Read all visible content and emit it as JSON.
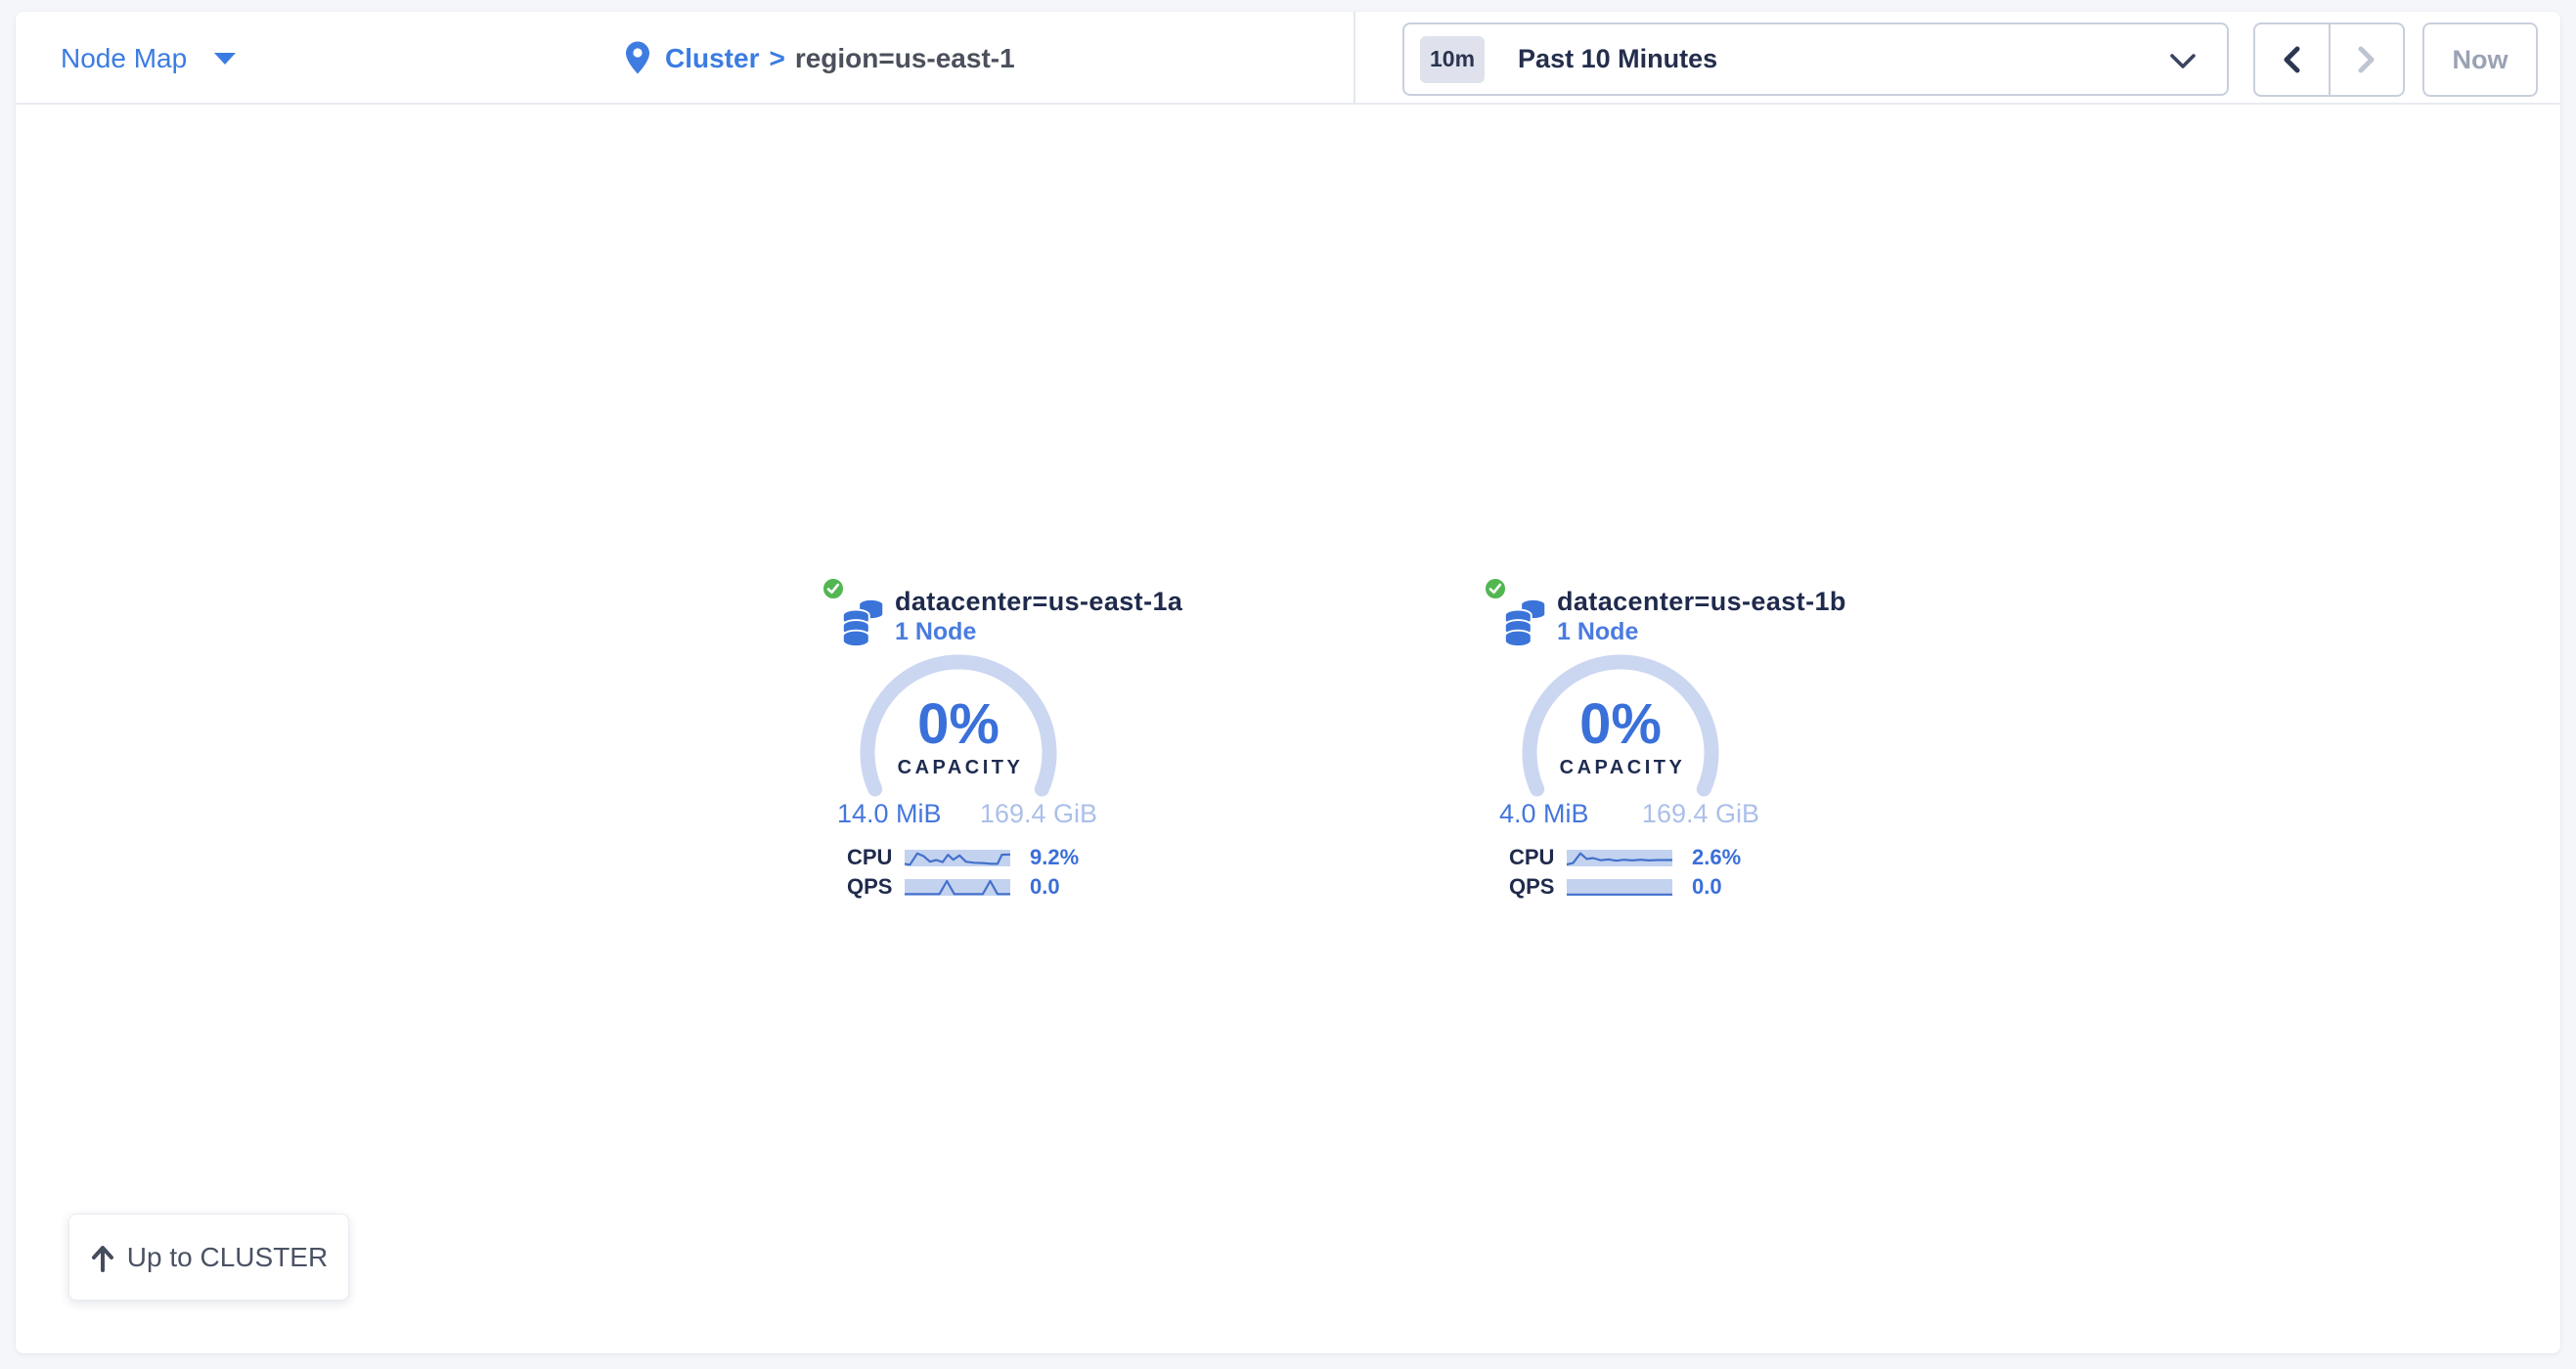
{
  "header": {
    "view_selector_label": "Node Map",
    "breadcrumb": {
      "root": "Cluster",
      "separator": ">",
      "current": "region=us-east-1"
    },
    "time_selector": {
      "badge": "10m",
      "label": "Past 10 Minutes"
    },
    "now_label": "Now"
  },
  "datacenters": [
    {
      "title": "datacenter=us-east-1a",
      "subtitle": "1 Node",
      "status": "healthy",
      "capacity": {
        "percent": "0%",
        "label": "CAPACITY",
        "used": "14.0 MiB",
        "total": "169.4 GiB"
      },
      "metrics": [
        {
          "label": "CPU",
          "value": "9.2%",
          "spark": [
            [
              0,
              0.85
            ],
            [
              0.05,
              0.9
            ],
            [
              0.12,
              0.22
            ],
            [
              0.18,
              0.38
            ],
            [
              0.24,
              0.72
            ],
            [
              0.3,
              0.62
            ],
            [
              0.36,
              0.74
            ],
            [
              0.41,
              0.3
            ],
            [
              0.46,
              0.6
            ],
            [
              0.52,
              0.34
            ],
            [
              0.58,
              0.72
            ],
            [
              0.66,
              0.78
            ],
            [
              0.74,
              0.8
            ],
            [
              0.82,
              0.85
            ],
            [
              0.88,
              0.85
            ],
            [
              0.92,
              0.3
            ],
            [
              1,
              0.28
            ]
          ]
        },
        {
          "label": "QPS",
          "value": "0.0",
          "spark": [
            [
              0,
              0.9
            ],
            [
              0.33,
              0.9
            ],
            [
              0.4,
              0.12
            ],
            [
              0.47,
              0.9
            ],
            [
              0.74,
              0.9
            ],
            [
              0.81,
              0.12
            ],
            [
              0.88,
              0.9
            ],
            [
              1,
              0.9
            ]
          ]
        }
      ]
    },
    {
      "title": "datacenter=us-east-1b",
      "subtitle": "1 Node",
      "status": "healthy",
      "capacity": {
        "percent": "0%",
        "label": "CAPACITY",
        "used": "4.0 MiB",
        "total": "169.4 GiB"
      },
      "metrics": [
        {
          "label": "CPU",
          "value": "2.6%",
          "spark": [
            [
              0,
              0.88
            ],
            [
              0.06,
              0.8
            ],
            [
              0.13,
              0.22
            ],
            [
              0.19,
              0.55
            ],
            [
              0.25,
              0.5
            ],
            [
              0.32,
              0.63
            ],
            [
              0.4,
              0.58
            ],
            [
              0.47,
              0.66
            ],
            [
              0.54,
              0.6
            ],
            [
              0.62,
              0.64
            ],
            [
              0.7,
              0.6
            ],
            [
              0.78,
              0.64
            ],
            [
              0.86,
              0.62
            ],
            [
              1,
              0.62
            ]
          ]
        },
        {
          "label": "QPS",
          "value": "0.0",
          "spark": [
            [
              0,
              0.93
            ],
            [
              1,
              0.93
            ]
          ]
        }
      ]
    }
  ],
  "up_button_label": "Up to CLUSTER",
  "colors": {
    "accent_blue": "#3b7ce2",
    "dark_navy": "#1f2a4c",
    "gauge_track": "#cbd7f1",
    "spark_bg": "#c3d3ef",
    "spark_line": "#4470cc",
    "healthy_green": "#52b751",
    "disabled_gray": "#9aa2b4"
  }
}
